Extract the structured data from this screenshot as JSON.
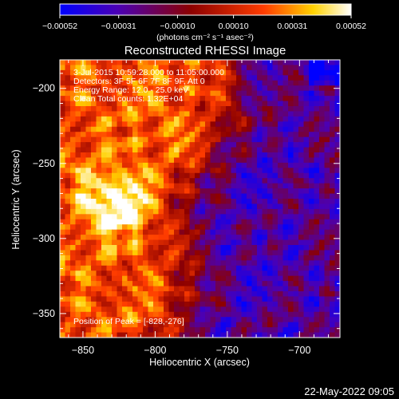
{
  "chart_data": {
    "type": "heatmap",
    "title": "Reconstructed RHESSI Image",
    "xlabel": "Heliocentric X (arcsec)",
    "ylabel": "Heliocentric Y (arcsec)",
    "x_ticks": [
      -850,
      -800,
      -750,
      -700
    ],
    "x_tick_labels": [
      "−850",
      "−800",
      "−750",
      "−700"
    ],
    "y_ticks": [
      -200,
      -250,
      -300,
      -350
    ],
    "y_tick_labels": [
      "−200",
      "−250",
      "−300",
      "−350"
    ],
    "xlim": [
      -866,
      -672
    ],
    "ylim": [
      -366,
      -181
    ],
    "colorbar": {
      "range": [
        -0.00052,
        0.00052
      ],
      "tick_values": [
        -0.00052,
        -0.00031,
        -0.0001,
        0.0001,
        0.00031,
        0.00052
      ],
      "tick_labels": [
        "−0.00052",
        "−0.00031",
        "−0.00010",
        "0.00010",
        "0.00031",
        "0.00052"
      ],
      "units": "(photons cm⁻² s⁻¹ asec⁻²)",
      "colors": [
        "#0000ff",
        "#4b00b4",
        "#8c0000",
        "#ff3c00",
        "#ffd200",
        "#ffffff"
      ]
    },
    "info": {
      "time": "3-Jul-2015 10:59:28.000 to 11:05:00.000",
      "detectors": "Detectors: 3F 5F 6F 7F 8F 9F, Att 0",
      "energy": "Energy Range: 12.0 - 25.0 keV",
      "algorithm": "Clean     Total counts: 1.32E+04",
      "peak": "Position of Peak = [-828,-276]"
    },
    "peak": {
      "x": -828,
      "y": -276
    }
  },
  "footer": {
    "date": "22-May-2022 09:05"
  }
}
